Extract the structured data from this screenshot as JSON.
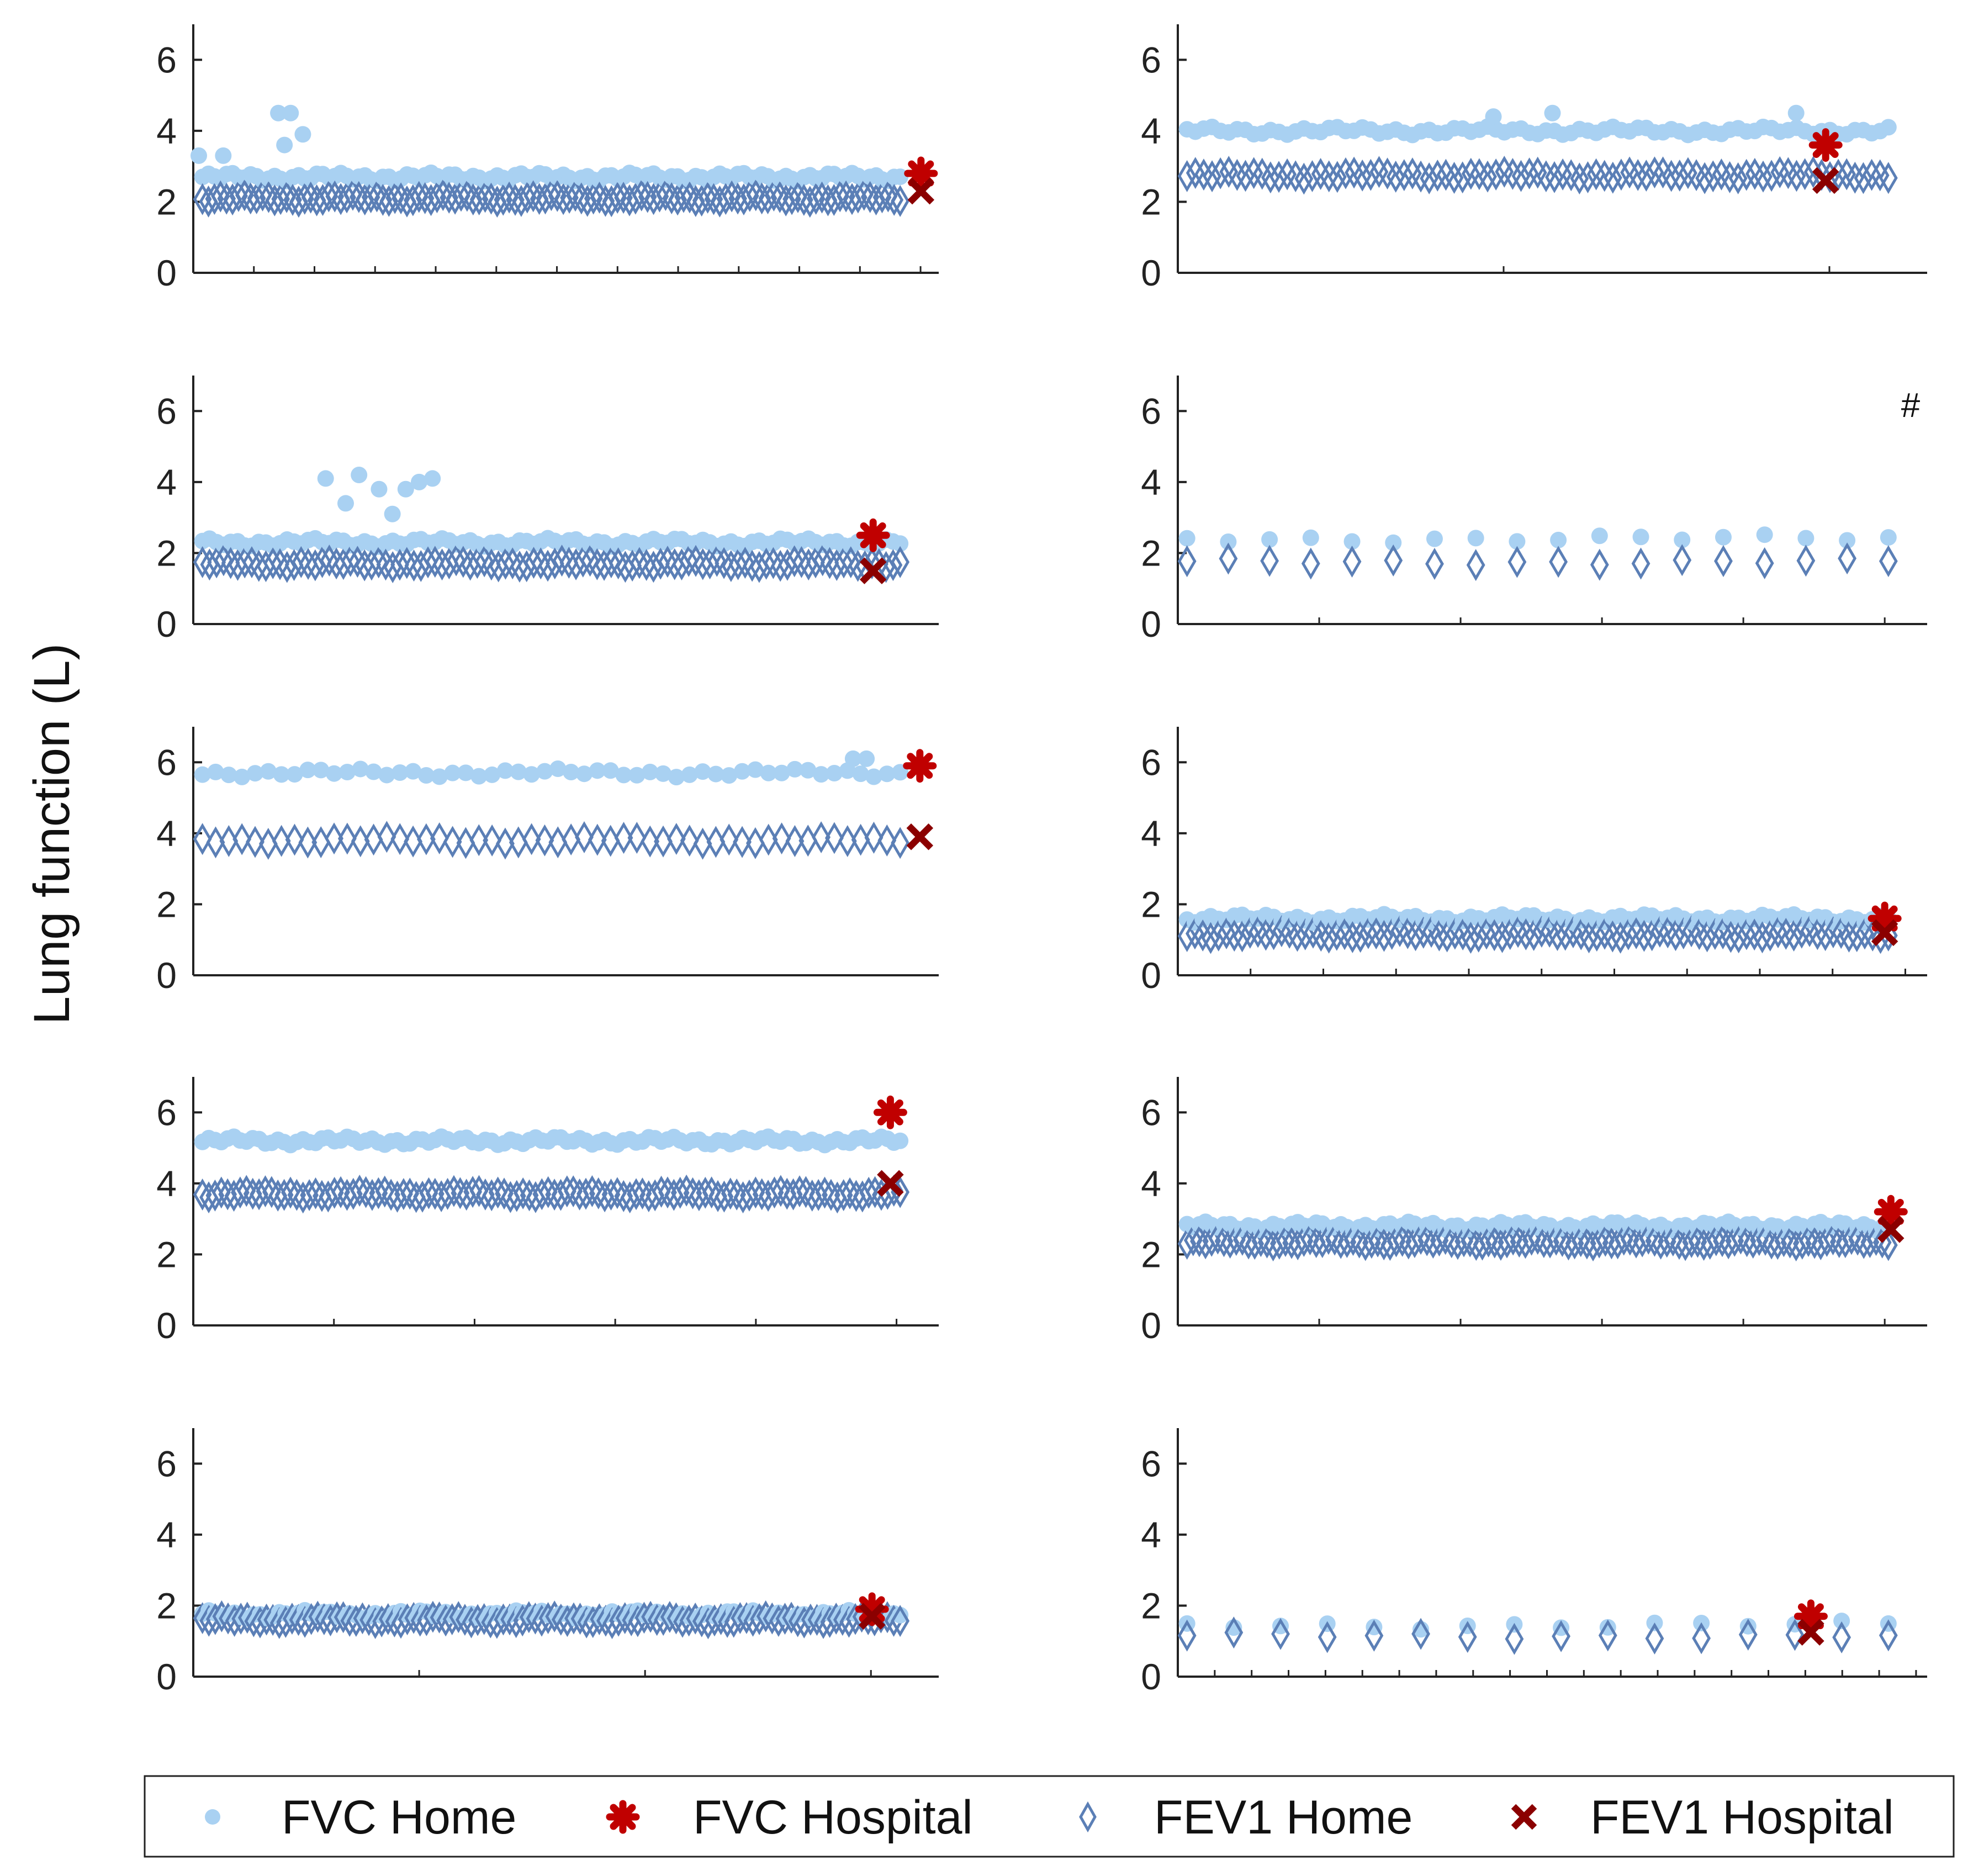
{
  "chart_data": {
    "type": "scatter",
    "ylabel": "Lung function (L)",
    "ylim": [
      0,
      7
    ],
    "yticks": [
      0,
      2,
      4,
      6
    ],
    "colors": {
      "fvc_home": "#a9d1f2",
      "fvc_hospital": "#c00000",
      "fev1_home": "#5b7fb6",
      "fev1_hospital": "#8b0000",
      "axis": "#222222"
    },
    "legend": {
      "position": "bottom",
      "entries": [
        {
          "key": "fvc_home",
          "label": "FVC Home",
          "marker": "dot"
        },
        {
          "key": "fvc_hospital",
          "label": "FVC Hospital",
          "marker": "asterisk"
        },
        {
          "key": "fev1_home",
          "label": "FEV1 Home",
          "marker": "diamond"
        },
        {
          "key": "fev1_hospital",
          "label": "FEV1 Hospital",
          "marker": "x"
        }
      ]
    },
    "panels": [
      {
        "id": "p1",
        "row": 0,
        "col": 0,
        "annotation": "",
        "xmax": 120,
        "xticks": 12,
        "n_home": 117,
        "fvc_home_level": 2.7,
        "fev1_home_level": 2.1,
        "fvc_hospital": 2.8,
        "fev1_hospital": 2.3,
        "hospital_x": 118,
        "fvc_extra": [
          [
            0,
            3.3
          ],
          [
            4,
            3.3
          ],
          [
            13,
            4.5
          ],
          [
            15,
            4.5
          ],
          [
            17,
            3.9
          ],
          [
            14,
            3.6
          ]
        ]
      },
      {
        "id": "p2",
        "row": 0,
        "col": 1,
        "annotation": "",
        "xmax": 100,
        "xticks": 2,
        "n_home": 85,
        "fvc_home_level": 4.0,
        "fev1_home_level": 2.75,
        "fvc_hospital": 3.6,
        "fev1_hospital": 2.6,
        "hospital_x": 87,
        "fvc_extra": [
          [
            42,
            4.4
          ],
          [
            50,
            4.5
          ],
          [
            83,
            4.5
          ]
        ]
      },
      {
        "id": "p3",
        "row": 1,
        "col": 0,
        "annotation": "",
        "xmax": 110,
        "xticks": 0,
        "n_home": 100,
        "fvc_home_level": 2.3,
        "fev1_home_level": 1.7,
        "fvc_hospital": 2.5,
        "fev1_hospital": 1.5,
        "hospital_x": 101,
        "fvc_extra": [
          [
            19,
            4.1
          ],
          [
            24,
            4.2
          ],
          [
            27,
            3.8
          ],
          [
            22,
            3.4
          ],
          [
            29,
            3.1
          ],
          [
            31,
            3.8
          ],
          [
            33,
            4.0
          ],
          [
            35,
            4.1
          ]
        ]
      },
      {
        "id": "p4",
        "row": 1,
        "col": 1,
        "annotation": "#",
        "xmax": 20,
        "xticks": 5,
        "n_home": 18,
        "fvc_home_level": 2.4,
        "fev1_home_level": 1.75,
        "fvc_hospital": null,
        "fev1_hospital": null,
        "hospital_x": null,
        "fvc_extra": []
      },
      {
        "id": "p5",
        "row": 2,
        "col": 0,
        "annotation": "",
        "xmax": 110,
        "xticks": 0,
        "n_home": 54,
        "fvc_home_level": 5.7,
        "fev1_home_level": 3.8,
        "fvc_hospital": 5.9,
        "fev1_hospital": 3.9,
        "hospital_x": 108,
        "fvc_extra": [
          [
            98,
            6.1
          ],
          [
            100,
            6.1
          ]
        ]
      },
      {
        "id": "p6",
        "row": 2,
        "col": 1,
        "annotation": "",
        "xmax": 100,
        "xticks": 10,
        "n_home": 90,
        "fvc_home_level": 1.6,
        "fev1_home_level": 1.15,
        "fvc_hospital": 1.6,
        "fev1_hospital": 1.2,
        "hospital_x": 95,
        "fvc_extra": []
      },
      {
        "id": "p7",
        "row": 3,
        "col": 0,
        "annotation": "",
        "xmax": 120,
        "xticks": 5,
        "n_home": 112,
        "fvc_home_level": 5.2,
        "fev1_home_level": 3.7,
        "fvc_hospital": 6.0,
        "fev1_hospital": 4.0,
        "hospital_x": 113,
        "fvc_extra": []
      },
      {
        "id": "p8",
        "row": 3,
        "col": 1,
        "annotation": "",
        "xmax": 120,
        "xticks": 5,
        "n_home": 115,
        "fvc_home_level": 2.8,
        "fev1_home_level": 2.35,
        "fvc_hospital": 3.2,
        "fev1_hospital": 2.7,
        "hospital_x": 115,
        "fvc_extra": []
      },
      {
        "id": "p9",
        "row": 4,
        "col": 0,
        "annotation": "",
        "xmax": 120,
        "xticks": 3,
        "n_home": 110,
        "fvc_home_level": 1.75,
        "fev1_home_level": 1.6,
        "fvc_hospital": 1.9,
        "fev1_hospital": 1.7,
        "hospital_x": 110,
        "fvc_extra": []
      },
      {
        "id": "p10",
        "row": 4,
        "col": 1,
        "annotation": "",
        "xmax": 20,
        "xticks": 20,
        "n_home": 16,
        "fvc_home_level": 1.45,
        "fev1_home_level": 1.15,
        "fvc_hospital": 1.7,
        "fev1_hospital": 1.25,
        "hospital_x": 17,
        "fvc_extra": []
      }
    ]
  }
}
